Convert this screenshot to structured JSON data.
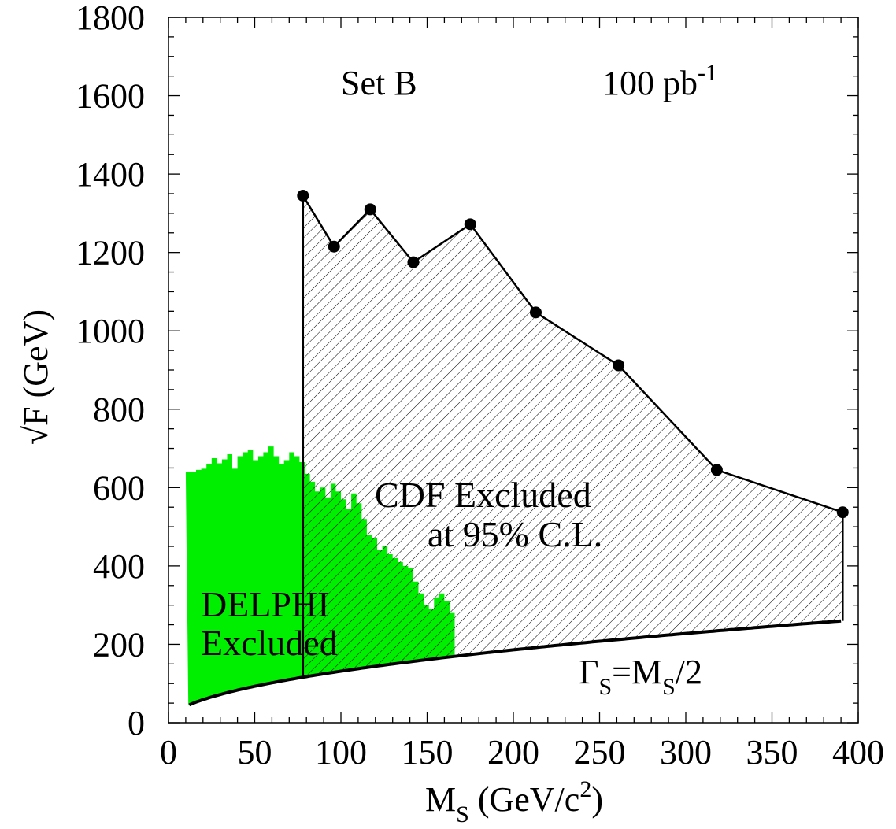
{
  "chart_data": {
    "type": "area",
    "xlabel": {
      "main": "M",
      "sub": "S",
      "rest": " (GeV/c",
      "sup": "2",
      "close": ")"
    },
    "ylabel": "√F (GeV)",
    "xlim": [
      0,
      400
    ],
    "ylim": [
      0,
      1800
    ],
    "x_ticks": [
      0,
      50,
      100,
      150,
      200,
      250,
      300,
      350,
      400
    ],
    "y_ticks": [
      0,
      200,
      400,
      600,
      800,
      1000,
      1200,
      1400,
      1600,
      1800
    ],
    "x_minor_step": 10,
    "y_minor_step": 50,
    "annotations": {
      "set_label": "Set B",
      "luminosity": {
        "text": "100 pb",
        "sup": "-1"
      },
      "cdf_line1": "CDF Excluded",
      "cdf_line2": "at 95% C.L.",
      "delphi_line1": "DELPHI",
      "delphi_line2": "Excluded",
      "width_label": {
        "a": "Γ",
        "a_sub": "S",
        "b": "=M",
        "b_sub": "S",
        "c": "/2"
      }
    },
    "series": [
      {
        "name": "CDF Excluded at 95% C.L.",
        "fill": "hatched",
        "color": "#000000",
        "points": [
          {
            "x": 78,
            "y": 1345
          },
          {
            "x": 96,
            "y": 1215
          },
          {
            "x": 117,
            "y": 1310
          },
          {
            "x": 142,
            "y": 1175
          },
          {
            "x": 175,
            "y": 1272
          },
          {
            "x": 213,
            "y": 1047
          },
          {
            "x": 261,
            "y": 912
          },
          {
            "x": 318,
            "y": 645
          },
          {
            "x": 391,
            "y": 537
          }
        ],
        "lower_boundary_x": 78,
        "upper_x": 391
      },
      {
        "name": "DELPHI Excluded",
        "fill": "solid",
        "color": "#00ee00",
        "x": [
          10,
          13,
          16,
          19,
          22,
          25,
          28,
          31,
          34,
          37,
          40,
          43,
          46,
          49,
          52,
          55,
          58,
          61,
          64,
          67,
          70,
          73,
          76,
          79,
          82,
          85,
          88,
          91,
          94,
          97,
          100,
          103,
          106,
          109,
          112,
          115,
          118,
          121,
          124,
          127,
          130,
          133,
          136,
          139,
          142,
          145,
          148,
          151,
          154,
          157,
          160,
          163,
          166
        ],
        "y": [
          640,
          640,
          645,
          648,
          660,
          675,
          662,
          672,
          685,
          648,
          680,
          690,
          695,
          670,
          680,
          690,
          705,
          680,
          660,
          670,
          690,
          680,
          665,
          635,
          615,
          590,
          600,
          575,
          610,
          590,
          570,
          545,
          585,
          560,
          520,
          480,
          470,
          440,
          450,
          430,
          420,
          410,
          400,
          395,
          360,
          330,
          300,
          290,
          320,
          330,
          310,
          280,
          170
        ]
      },
      {
        "name": "Γ_S=M_S/2",
        "fill": "none",
        "color": "#000000",
        "curve": "c*sqrt(x)",
        "points": [
          {
            "x": 12,
            "y": 40
          },
          {
            "x": 20,
            "y": 62
          },
          {
            "x": 40,
            "y": 84
          },
          {
            "x": 78,
            "y": 108
          },
          {
            "x": 120,
            "y": 132
          },
          {
            "x": 200,
            "y": 172
          },
          {
            "x": 300,
            "y": 215
          },
          {
            "x": 391,
            "y": 260
          }
        ]
      }
    ],
    "grid": false,
    "legend": "none"
  }
}
